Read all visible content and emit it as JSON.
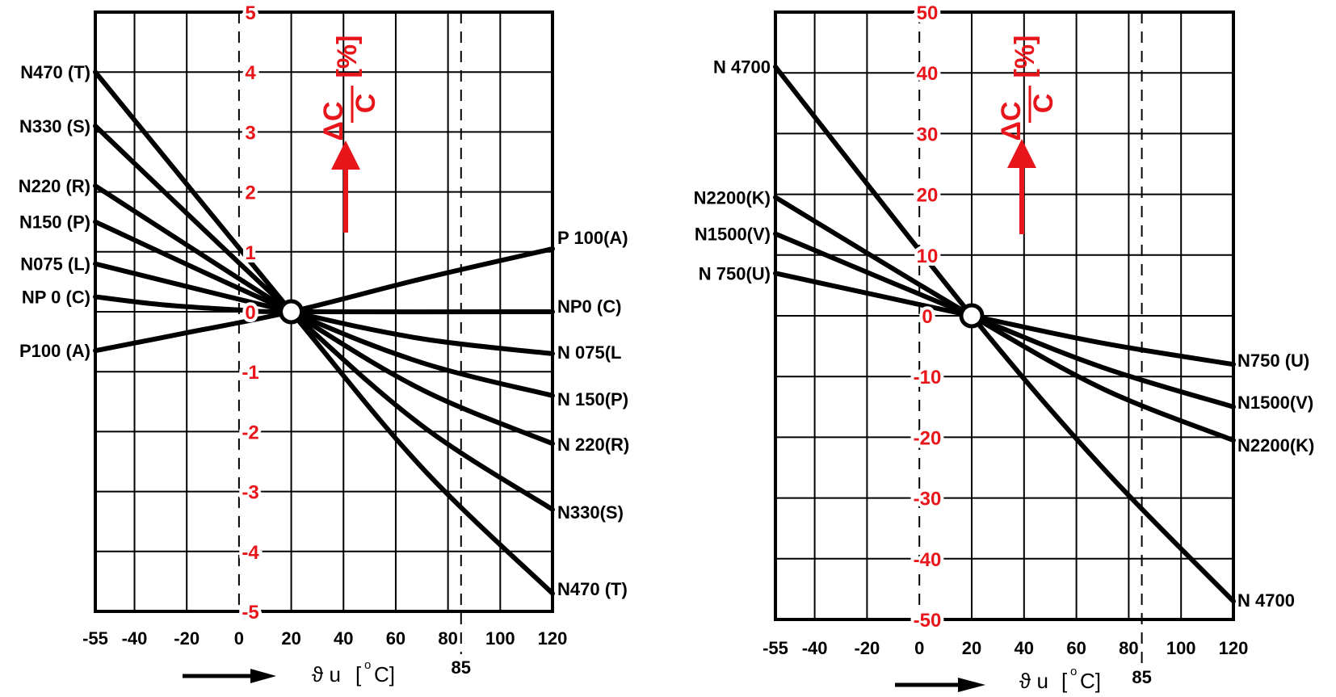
{
  "chart_data": [
    {
      "type": "line",
      "title": "",
      "y_axis_label_numerator": "ΔC",
      "y_axis_label_denominator": "C",
      "y_axis_unit": "[%]",
      "xlabel_symbol": "ϑ u",
      "xlabel_unit_open": "[",
      "xlabel_unit_degree": "o",
      "xlabel_unit_close": "C]",
      "xlim": [
        -55,
        120
      ],
      "ylim": [
        -5,
        5
      ],
      "x_ticks": [
        -55,
        -40,
        -20,
        0,
        20,
        40,
        60,
        80,
        100,
        120
      ],
      "x_tick_labels": [
        "-55",
        "-40",
        "-20",
        "0",
        "20",
        "40",
        "60",
        "80",
        "100",
        "120"
      ],
      "y_ticks": [
        -5,
        -4,
        -3,
        -2,
        -1,
        0,
        1,
        2,
        3,
        4,
        5
      ],
      "y_tick_labels": [
        "-5",
        "-4",
        "-3",
        "-2",
        "-1",
        "0",
        "1",
        "2",
        "3",
        "4",
        "5"
      ],
      "reference_line": {
        "x": 85,
        "label": "85",
        "style": "dashed"
      },
      "reference_point": {
        "x": 20,
        "y": 0
      },
      "grid": true,
      "series": [
        {
          "name": "N470 (T)",
          "end_label": "N470 (T)",
          "x": [
            -55,
            20,
            70,
            120
          ],
          "y": [
            4.0,
            0,
            -2.6,
            -4.7
          ]
        },
        {
          "name": "N330 (S)",
          "end_label": "N330(S)",
          "x": [
            -55,
            20,
            70,
            120
          ],
          "y": [
            3.1,
            0,
            -1.9,
            -3.3
          ]
        },
        {
          "name": "N220 (R)",
          "end_label": "N 220(R)",
          "x": [
            -55,
            20,
            70,
            120
          ],
          "y": [
            2.1,
            0,
            -1.3,
            -2.2
          ]
        },
        {
          "name": "N150 (P)",
          "end_label": "N 150(P)",
          "x": [
            -55,
            20,
            70,
            120
          ],
          "y": [
            1.5,
            0,
            -0.85,
            -1.4
          ]
        },
        {
          "name": "N075 (L)",
          "end_label": "N 075(L",
          "x": [
            -55,
            20,
            70,
            120
          ],
          "y": [
            0.8,
            0,
            -0.45,
            -0.7
          ]
        },
        {
          "name": "NP 0 (C)",
          "end_label": "NP0 (C)",
          "x": [
            -55,
            -30,
            0,
            20,
            120
          ],
          "y": [
            0.25,
            0.12,
            0.03,
            0,
            0
          ]
        },
        {
          "name": "P100 (A)",
          "end_label": "P 100(A)",
          "x": [
            -55,
            -20,
            20,
            70,
            120
          ],
          "y": [
            -0.65,
            -0.35,
            0,
            0.55,
            1.05
          ]
        }
      ]
    },
    {
      "type": "line",
      "title": "",
      "y_axis_label_numerator": "ΔC",
      "y_axis_label_denominator": "C",
      "y_axis_unit": "[%]",
      "xlabel_symbol": "ϑ u",
      "xlabel_unit_open": "[",
      "xlabel_unit_degree": "o",
      "xlabel_unit_close": "C]",
      "xlim": [
        -55,
        120
      ],
      "ylim": [
        -50,
        50
      ],
      "x_ticks": [
        -55,
        -40,
        -20,
        0,
        20,
        40,
        60,
        80,
        100,
        120
      ],
      "x_tick_labels": [
        "-55",
        "-40",
        "-20",
        "0",
        "20",
        "40",
        "60",
        "80",
        "100",
        "120"
      ],
      "y_ticks": [
        -50,
        -40,
        -30,
        -20,
        -10,
        0,
        10,
        20,
        30,
        40,
        50
      ],
      "y_tick_labels": [
        "-50",
        "-40",
        "-30",
        "-20",
        "-10",
        "0",
        "10",
        "20",
        "30",
        "40",
        "50"
      ],
      "reference_line": {
        "x": 85,
        "label": "85",
        "style": "dashed"
      },
      "reference_point": {
        "x": 20,
        "y": 0
      },
      "grid": true,
      "series": [
        {
          "name": "N 4700",
          "end_label": "N 4700",
          "x": [
            -55,
            20,
            70,
            120
          ],
          "y": [
            41,
            0,
            -25,
            -47
          ]
        },
        {
          "name": "N2200(K)",
          "end_label": "N2200(K)",
          "x": [
            -55,
            20,
            70,
            120
          ],
          "y": [
            19.5,
            0,
            -12,
            -20.5
          ]
        },
        {
          "name": "N1500(V)",
          "end_label": "N1500(V)",
          "x": [
            -55,
            20,
            70,
            120
          ],
          "y": [
            13.5,
            0,
            -8.5,
            -15
          ]
        },
        {
          "name": "N  750(U)",
          "end_label": "N750   (U)",
          "x": [
            -55,
            20,
            70,
            120
          ],
          "y": [
            7,
            0,
            -4.5,
            -8
          ]
        }
      ]
    }
  ]
}
